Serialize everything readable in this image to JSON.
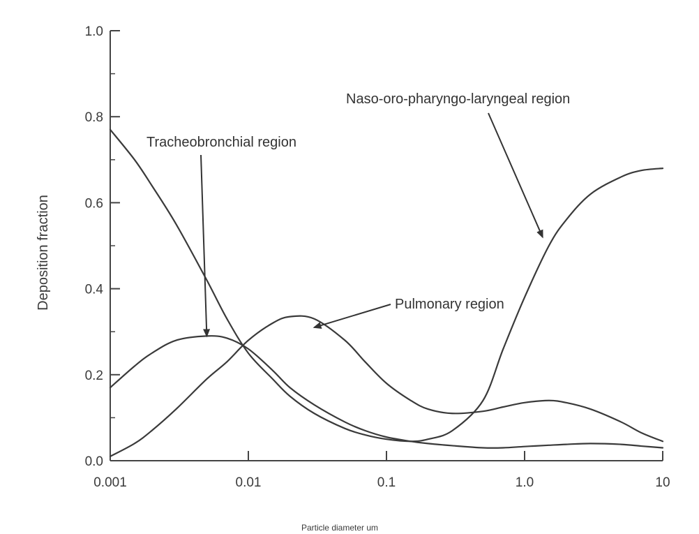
{
  "chart_data": {
    "type": "line",
    "x_scale": "log",
    "xlabel": "Particle diameter um",
    "ylabel": "Deposition fraction",
    "xlim": [
      0.001,
      10
    ],
    "ylim": [
      0,
      1.0
    ],
    "x_tick_values": [
      0.001,
      0.01,
      0.1,
      1.0,
      10
    ],
    "x_tick_labels": [
      "0.001",
      "0.01",
      "0.1",
      "1.0",
      "10"
    ],
    "y_tick_values": [
      0,
      0.2,
      0.4,
      0.6,
      0.8,
      1.0
    ],
    "y_tick_labels": [
      "0.0",
      "0.2",
      "0.4",
      "0.6",
      "0.8",
      "1.0"
    ],
    "grid": false,
    "legend": "none",
    "colors": {
      "ink": "#3a3a3a",
      "axis": "#444444"
    },
    "series": [
      {
        "x": [
          0.001,
          0.0015,
          0.002,
          0.003,
          0.005,
          0.007,
          0.01,
          0.015,
          0.02,
          0.03,
          0.05,
          0.07,
          0.1,
          0.15,
          0.2,
          0.3,
          0.5,
          0.7,
          1.0,
          1.5,
          2,
          3,
          5,
          7,
          10
        ],
        "values": [
          0.77,
          0.7,
          0.64,
          0.55,
          0.42,
          0.33,
          0.25,
          0.19,
          0.15,
          0.11,
          0.075,
          0.06,
          0.05,
          0.045,
          0.05,
          0.07,
          0.14,
          0.26,
          0.38,
          0.5,
          0.56,
          0.62,
          0.66,
          0.675,
          0.68
        ]
      },
      {
        "x": [
          0.001,
          0.0015,
          0.002,
          0.003,
          0.005,
          0.007,
          0.01,
          0.015,
          0.02,
          0.03,
          0.05,
          0.07,
          0.1,
          0.15,
          0.2,
          0.3,
          0.5,
          0.7,
          1.0,
          1.5,
          2,
          3,
          5,
          7,
          10
        ],
        "values": [
          0.17,
          0.22,
          0.25,
          0.28,
          0.29,
          0.285,
          0.26,
          0.21,
          0.17,
          0.13,
          0.09,
          0.07,
          0.055,
          0.045,
          0.04,
          0.035,
          0.03,
          0.03,
          0.033,
          0.036,
          0.038,
          0.04,
          0.038,
          0.034,
          0.03
        ]
      },
      {
        "x": [
          0.001,
          0.0015,
          0.002,
          0.003,
          0.005,
          0.007,
          0.01,
          0.015,
          0.02,
          0.03,
          0.05,
          0.07,
          0.1,
          0.15,
          0.2,
          0.3,
          0.5,
          0.7,
          1.0,
          1.5,
          2,
          3,
          5,
          7,
          10
        ],
        "values": [
          0.01,
          0.04,
          0.07,
          0.12,
          0.19,
          0.23,
          0.28,
          0.32,
          0.335,
          0.33,
          0.28,
          0.23,
          0.18,
          0.14,
          0.12,
          0.11,
          0.115,
          0.125,
          0.135,
          0.14,
          0.135,
          0.12,
          0.09,
          0.065,
          0.045
        ]
      }
    ],
    "annotations": [
      {
        "text": "Tracheobronchial region",
        "arrow_to": [
          0.005,
          0.29
        ]
      },
      {
        "text": "Pulmonary region",
        "arrow_to": [
          0.03,
          0.31
        ]
      },
      {
        "text": "Naso-oro-pharyngo-laryngeal region",
        "arrow_to": [
          1.35,
          0.52
        ]
      }
    ]
  }
}
